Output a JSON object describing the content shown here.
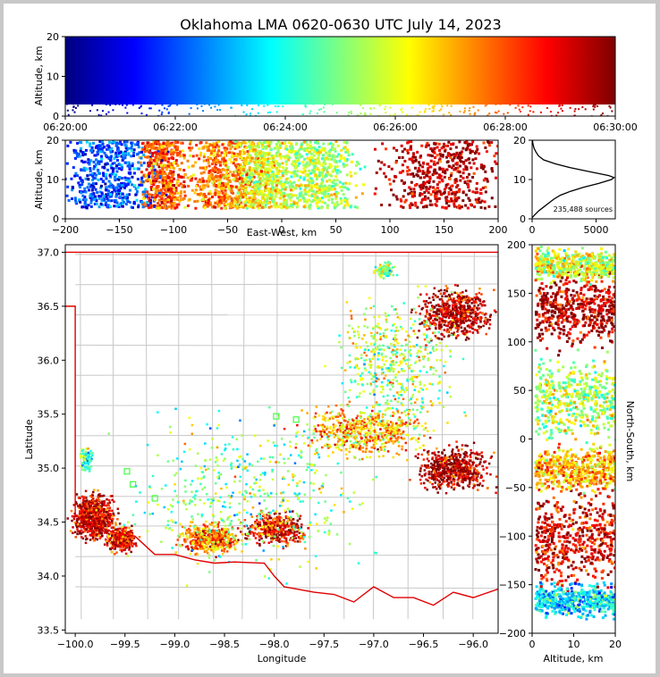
{
  "chart_data": [
    {
      "type": "scatter",
      "panel": "time-height",
      "title": "Oklahoma LMA 0620-0630 UTC July 14, 2023",
      "ylabel": "Altitude, km",
      "xlabel": "",
      "ylim": [
        0,
        20
      ],
      "yticks": [
        0,
        10,
        20
      ],
      "xticks": [
        "06:20:00",
        "06:22:00",
        "06:24:00",
        "06:26:00",
        "06:28:00",
        "06:30:00"
      ],
      "colormap": [
        "#00007f",
        "#0000ff",
        "#007fff",
        "#00ffff",
        "#7fff7f",
        "#ffff00",
        "#ff7f00",
        "#ff0000",
        "#7f0000"
      ],
      "note": "sources colored by time, 0-20 km altitude continuously"
    },
    {
      "type": "scatter",
      "panel": "east-west vs altitude",
      "xlabel": "East-West, km",
      "ylabel": "Altitude, km",
      "xlim": [
        -200,
        200
      ],
      "ylim": [
        0,
        20
      ],
      "xticks": [
        -200,
        -150,
        -100,
        -50,
        0,
        50,
        100,
        150,
        200
      ],
      "yticks": [
        0,
        10,
        20
      ]
    },
    {
      "type": "line",
      "panel": "altitude histogram",
      "xlim": [
        0,
        6500
      ],
      "ylim": [
        0,
        20
      ],
      "xticks": [
        0,
        5000
      ],
      "yticks": [
        0,
        10,
        20
      ],
      "annotation": "235,488 sources",
      "profile": {
        "altitude_km": [
          0.3,
          1,
          2,
          3,
          4,
          5,
          6,
          7,
          8,
          9,
          10,
          10.5,
          11,
          12,
          13,
          14,
          15,
          16,
          17,
          18,
          19,
          20
        ],
        "count": [
          0,
          200,
          500,
          900,
          1300,
          1700,
          2200,
          3000,
          4000,
          5200,
          6200,
          6400,
          6000,
          4500,
          3000,
          1800,
          900,
          500,
          300,
          150,
          70,
          20
        ]
      }
    },
    {
      "type": "scatter",
      "panel": "plan view",
      "xlabel": "Longitude",
      "ylabel": "Latitude",
      "xlim": [
        -100.1,
        -95.75
      ],
      "ylim": [
        33.47,
        37.07
      ],
      "xticks": [
        -100.0,
        -99.5,
        -99.0,
        -98.5,
        -98.0,
        -97.5,
        -97.0,
        -96.5,
        -96.0
      ],
      "yticks": [
        33.5,
        34.0,
        34.5,
        35.0,
        35.5,
        36.0,
        36.5,
        37.0
      ],
      "station_markers": [
        {
          "lon": -99.48,
          "lat": 34.97
        },
        {
          "lon": -99.42,
          "lat": 34.85
        },
        {
          "lon": -99.2,
          "lat": 34.72
        },
        {
          "lon": -97.98,
          "lat": 35.48
        },
        {
          "lon": -97.78,
          "lat": 35.45
        }
      ]
    },
    {
      "type": "scatter",
      "panel": "altitude vs north-south",
      "xlabel": "Altitude, km",
      "ylabel": "North-South, km",
      "xlim": [
        0,
        20
      ],
      "ylim": [
        -200,
        200
      ],
      "xticks": [
        0,
        10,
        20
      ],
      "yticks": [
        -200,
        -150,
        -100,
        -50,
        0,
        50,
        100,
        150,
        200
      ]
    }
  ]
}
